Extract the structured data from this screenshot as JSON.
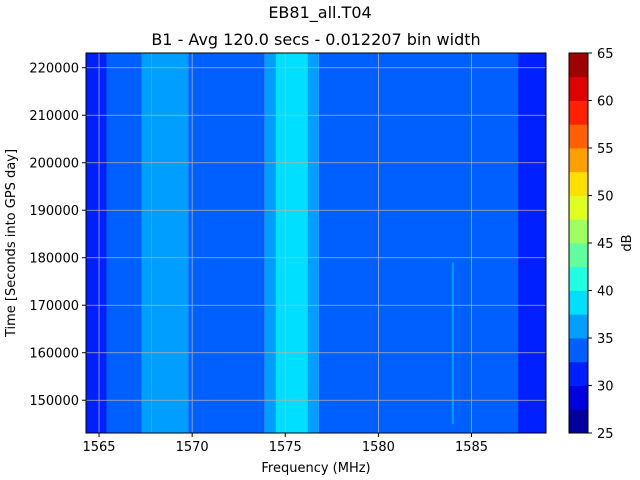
{
  "chart_data": {
    "type": "heatmap",
    "title": "EB81_all.T04",
    "subtitle": "B1 - Avg 120.0 secs - 0.012207 bin width",
    "xlabel": "Frequency (MHz)",
    "ylabel": "Time [Seconds into GPS day]",
    "xlim": [
      1564.3,
      1589.0
    ],
    "ylim": [
      143100,
      223100
    ],
    "x_ticks": [
      1565,
      1570,
      1575,
      1580,
      1585
    ],
    "y_ticks": [
      150000,
      160000,
      170000,
      180000,
      190000,
      200000,
      210000,
      220000
    ],
    "grid": true,
    "colorbar": {
      "label": "dB",
      "min": 25,
      "max": 65,
      "ticks": [
        25,
        30,
        35,
        40,
        45,
        50,
        55,
        60,
        65
      ],
      "colormap": "jet",
      "levels": 16
    },
    "bands": [
      {
        "x_start": 1564.3,
        "x_end": 1565.4,
        "level_db": 30.5
      },
      {
        "x_start": 1565.4,
        "x_end": 1567.3,
        "level_db": 33.5
      },
      {
        "x_start": 1567.3,
        "x_end": 1567.8,
        "level_db": 35.5
      },
      {
        "x_start": 1567.8,
        "x_end": 1569.8,
        "level_db": 36.5
      },
      {
        "x_start": 1569.8,
        "x_end": 1573.9,
        "level_db": 33.5
      },
      {
        "x_start": 1573.9,
        "x_end": 1574.5,
        "level_db": 36.5
      },
      {
        "x_start": 1574.5,
        "x_end": 1576.2,
        "level_db": 39.5
      },
      {
        "x_start": 1576.2,
        "x_end": 1576.8,
        "level_db": 36.5
      },
      {
        "x_start": 1576.8,
        "x_end": 1587.5,
        "level_db": 33.5
      },
      {
        "x_start": 1587.5,
        "x_end": 1589.0,
        "level_db": 30.5
      }
    ],
    "spurs": [
      {
        "x": 1584.0,
        "y_start": 145000,
        "y_end": 179000,
        "level_db": 36.5
      }
    ]
  }
}
